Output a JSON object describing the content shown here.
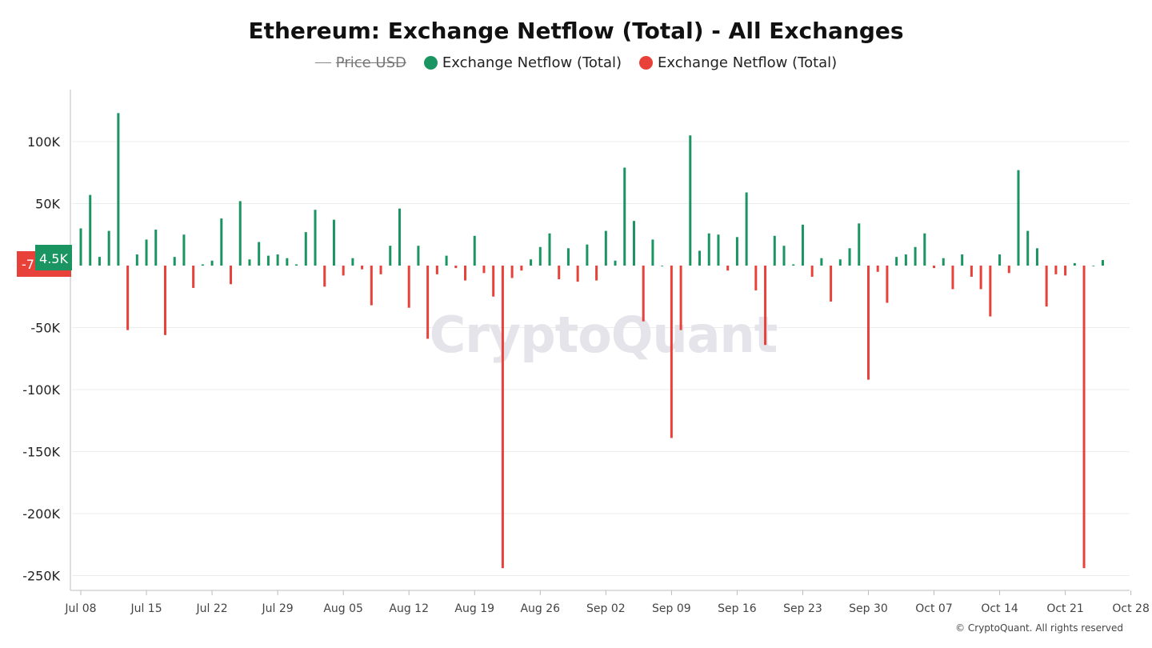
{
  "title": "Ethereum: Exchange Netflow (Total) - All Exchanges",
  "legend": [
    {
      "label": "Price USD",
      "kind": "line",
      "hidden": true,
      "color": "#888888"
    },
    {
      "label": "Exchange Netflow (Total)",
      "kind": "dot",
      "hidden": false,
      "color": "#1a9460"
    },
    {
      "label": "Exchange Netflow (Total)",
      "kind": "dot",
      "hidden": false,
      "color": "#e8413a"
    }
  ],
  "watermark": "CryptoQuant",
  "copyright": "© CryptoQuant. All rights reserved",
  "last_value_tags": {
    "positive": {
      "text": "4.5K",
      "color": "#1a9460"
    },
    "negative": {
      "text": "-7",
      "color": "#e8413a"
    }
  },
  "chart_data": {
    "type": "bar",
    "title": "Ethereum: Exchange Netflow (Total) - All Exchanges",
    "xlabel": "",
    "ylabel": "",
    "ylim": [
      -260000,
      140000
    ],
    "grid": true,
    "legend_position": "top-center",
    "y_ticks": [
      {
        "value": 100000,
        "label": "100K"
      },
      {
        "value": 50000,
        "label": "50K"
      },
      {
        "value": -50000,
        "label": "-50K"
      },
      {
        "value": -100000,
        "label": "-100K"
      },
      {
        "value": -150000,
        "label": "-150K"
      },
      {
        "value": -200000,
        "label": "-200K"
      },
      {
        "value": -250000,
        "label": "-250K"
      }
    ],
    "x_ticks": [
      "Jul 08",
      "Jul 15",
      "Jul 22",
      "Jul 29",
      "Aug 05",
      "Aug 12",
      "Aug 19",
      "Aug 26",
      "Sep 02",
      "Sep 09",
      "Sep 16",
      "Sep 23",
      "Sep 30",
      "Oct 07",
      "Oct 14",
      "Oct 21",
      "Oct 28"
    ],
    "start_date": "Jul 08",
    "colors": {
      "positive": "#1a9460",
      "negative": "#e8413a"
    },
    "values": [
      30000,
      57000,
      7000,
      28000,
      123000,
      -52000,
      9000,
      21000,
      29000,
      -56000,
      7000,
      25000,
      -18000,
      1000,
      4000,
      38000,
      -15000,
      52000,
      5000,
      19000,
      8000,
      9000,
      6000,
      1000,
      27000,
      45000,
      -17000,
      37000,
      -8000,
      6000,
      -3000,
      -32000,
      -7000,
      16000,
      46000,
      -34000,
      16000,
      -59000,
      -7000,
      8000,
      -2000,
      -12000,
      24000,
      -6000,
      -25000,
      -244000,
      -10000,
      -4000,
      5000,
      15000,
      26000,
      -11000,
      14000,
      -13000,
      17000,
      -12000,
      28000,
      4000,
      79000,
      36000,
      -45000,
      21000,
      0,
      -139000,
      -52000,
      105000,
      12000,
      26000,
      25000,
      -4000,
      23000,
      59000,
      -20000,
      -64000,
      24000,
      16000,
      1000,
      33000,
      -9000,
      6000,
      -29000,
      5000,
      14000,
      34000,
      -92000,
      -5000,
      -30000,
      7000,
      9000,
      15000,
      26000,
      -2000,
      6000,
      -19000,
      9000,
      -9000,
      -19000,
      -41000,
      9000,
      -6000,
      77000,
      28000,
      14000,
      -33000,
      -7000,
      -8000,
      2000,
      -244000,
      0,
      4500
    ]
  }
}
